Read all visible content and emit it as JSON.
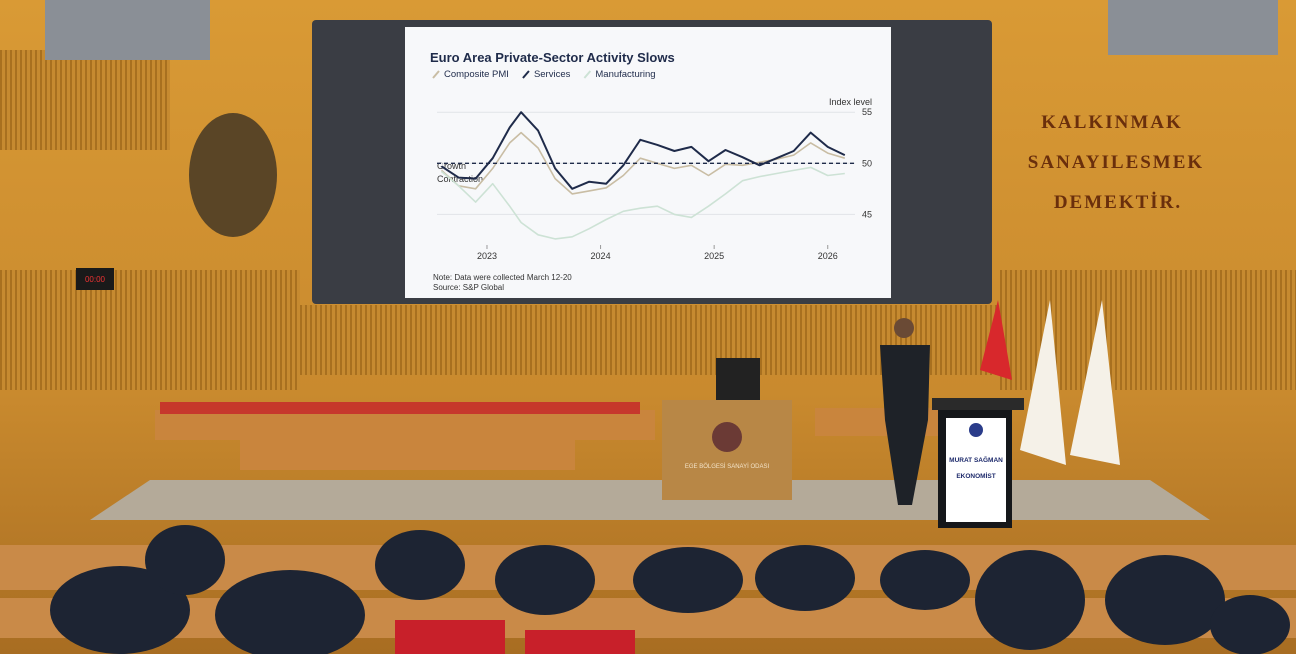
{
  "slide": {
    "chart_data": {
      "type": "line",
      "title": "Euro Area Private-Sector Activity Slows",
      "y_label": "Index level",
      "x": [
        2022.6,
        2022.75,
        2022.9,
        2023.05,
        2023.2,
        2023.3,
        2023.45,
        2023.6,
        2023.75,
        2023.9,
        2024.05,
        2024.2,
        2024.35,
        2024.5,
        2024.65,
        2024.8,
        2024.95,
        2025.1,
        2025.25,
        2025.4,
        2025.55,
        2025.7,
        2025.85,
        2026.0,
        2026.15
      ],
      "series": [
        {
          "name": "Composite PMI",
          "color": "#c9bda4",
          "values": [
            49.3,
            47.8,
            47.5,
            49.5,
            52.0,
            53.0,
            51.5,
            48.5,
            47.0,
            47.3,
            47.6,
            48.8,
            50.5,
            50.0,
            49.5,
            49.8,
            48.8,
            49.9,
            49.8,
            50.1,
            50.4,
            50.8,
            52.0,
            51.0,
            50.5
          ]
        },
        {
          "name": "Services",
          "color": "#1f2b4a",
          "values": [
            49.7,
            48.6,
            48.5,
            50.5,
            53.5,
            55.0,
            53.2,
            49.5,
            47.5,
            48.2,
            48.0,
            49.8,
            52.3,
            51.8,
            51.2,
            51.6,
            50.2,
            51.3,
            50.6,
            49.8,
            50.5,
            51.2,
            53.0,
            51.6,
            50.8
          ]
        },
        {
          "name": "Manufacturing",
          "color": "#cde2d5",
          "values": [
            49.2,
            47.8,
            46.2,
            48.0,
            45.8,
            44.2,
            43.0,
            42.6,
            42.8,
            43.6,
            44.5,
            45.3,
            45.6,
            45.8,
            45.0,
            44.7,
            45.8,
            47.0,
            48.3,
            48.7,
            49.0,
            49.3,
            49.6,
            48.8,
            49.0
          ]
        }
      ],
      "xlim": [
        2022.56,
        2026.24
      ],
      "xticks": [
        2023,
        2024,
        2025,
        2026
      ],
      "ylim": [
        42,
        56
      ],
      "yticks": [
        45,
        50,
        55
      ],
      "grid": true,
      "threshold": 50,
      "growth_label": "Growth",
      "contraction_label": "Contraction",
      "note": "Note: Data were collected March 12-20",
      "source": "Source: S&P Global"
    }
  },
  "wall": {
    "lines": [
      "KALKINMAK",
      "SANAYILESMEK",
      "DEMEKTİR."
    ]
  },
  "clock": "00:00",
  "podium": {
    "label": "EGE BÖLGESİ SANAYİ ODASI"
  },
  "nameplate": {
    "name": "MURAT SAĞMAN",
    "title": "EKONOMİST"
  }
}
